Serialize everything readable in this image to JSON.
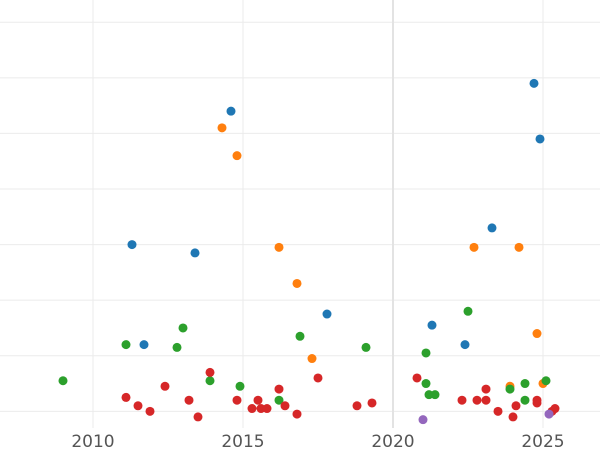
{
  "chart_data": {
    "type": "scatter",
    "title": "",
    "xlabel": "",
    "ylabel": "",
    "xlim": [
      2006.9,
      2026.9
    ],
    "ylim": [
      -0.3,
      7.4
    ],
    "grid": true,
    "legend": "none",
    "x_ticks": [
      2010,
      2015,
      2020,
      2025
    ],
    "x_tick_labels": [
      "2010",
      "2015",
      "2020",
      "2025"
    ],
    "y_gridlines": [
      0,
      1,
      2,
      3,
      4,
      5,
      6,
      7
    ],
    "series": [
      {
        "color": "#1f77b4",
        "points": [
          {
            "x": 2011.3,
            "y": 3.0
          },
          {
            "x": 2011.7,
            "y": 1.2
          },
          {
            "x": 2013.4,
            "y": 2.85
          },
          {
            "x": 2014.6,
            "y": 5.4
          },
          {
            "x": 2017.8,
            "y": 1.75
          },
          {
            "x": 2021.3,
            "y": 1.55
          },
          {
            "x": 2022.4,
            "y": 1.2
          },
          {
            "x": 2023.3,
            "y": 3.3
          },
          {
            "x": 2024.7,
            "y": 5.9
          },
          {
            "x": 2024.9,
            "y": 4.9
          }
        ]
      },
      {
        "color": "#ff7f0e",
        "points": [
          {
            "x": 2014.3,
            "y": 5.1
          },
          {
            "x": 2014.8,
            "y": 4.6
          },
          {
            "x": 2016.2,
            "y": 2.95
          },
          {
            "x": 2016.8,
            "y": 2.3
          },
          {
            "x": 2017.3,
            "y": 0.95
          },
          {
            "x": 2022.7,
            "y": 2.95
          },
          {
            "x": 2023.9,
            "y": 0.45
          },
          {
            "x": 2024.2,
            "y": 2.95
          },
          {
            "x": 2024.8,
            "y": 1.4
          },
          {
            "x": 2025.0,
            "y": 0.5
          }
        ]
      },
      {
        "color": "#2ca02c",
        "points": [
          {
            "x": 2009.0,
            "y": 0.55
          },
          {
            "x": 2011.1,
            "y": 1.2
          },
          {
            "x": 2012.8,
            "y": 1.15
          },
          {
            "x": 2013.0,
            "y": 1.5
          },
          {
            "x": 2013.9,
            "y": 0.55
          },
          {
            "x": 2014.9,
            "y": 0.45
          },
          {
            "x": 2016.2,
            "y": 0.2
          },
          {
            "x": 2016.9,
            "y": 1.35
          },
          {
            "x": 2019.1,
            "y": 1.15
          },
          {
            "x": 2021.1,
            "y": 1.05
          },
          {
            "x": 2021.1,
            "y": 0.5
          },
          {
            "x": 2021.2,
            "y": 0.3
          },
          {
            "x": 2021.4,
            "y": 0.3
          },
          {
            "x": 2022.5,
            "y": 1.8
          },
          {
            "x": 2023.9,
            "y": 0.4
          },
          {
            "x": 2024.4,
            "y": 0.5
          },
          {
            "x": 2024.4,
            "y": 0.2
          },
          {
            "x": 2025.1,
            "y": 0.55
          }
        ]
      },
      {
        "color": "#d62728",
        "points": [
          {
            "x": 2011.1,
            "y": 0.25
          },
          {
            "x": 2011.5,
            "y": 0.1
          },
          {
            "x": 2011.9,
            "y": 0.0
          },
          {
            "x": 2012.4,
            "y": 0.45
          },
          {
            "x": 2013.2,
            "y": 0.2
          },
          {
            "x": 2013.5,
            "y": -0.1
          },
          {
            "x": 2013.9,
            "y": 0.7
          },
          {
            "x": 2014.8,
            "y": 0.2
          },
          {
            "x": 2015.3,
            "y": 0.05
          },
          {
            "x": 2015.5,
            "y": 0.2
          },
          {
            "x": 2015.6,
            "y": 0.05
          },
          {
            "x": 2015.8,
            "y": 0.05
          },
          {
            "x": 2016.2,
            "y": 0.4
          },
          {
            "x": 2016.4,
            "y": 0.1
          },
          {
            "x": 2016.8,
            "y": -0.05
          },
          {
            "x": 2017.5,
            "y": 0.6
          },
          {
            "x": 2018.8,
            "y": 0.1
          },
          {
            "x": 2019.3,
            "y": 0.15
          },
          {
            "x": 2020.8,
            "y": 0.6
          },
          {
            "x": 2022.3,
            "y": 0.2
          },
          {
            "x": 2022.8,
            "y": 0.2
          },
          {
            "x": 2023.1,
            "y": 0.2
          },
          {
            "x": 2023.1,
            "y": 0.4
          },
          {
            "x": 2023.5,
            "y": 0.0
          },
          {
            "x": 2024.0,
            "y": -0.1
          },
          {
            "x": 2024.1,
            "y": 0.1
          },
          {
            "x": 2024.8,
            "y": 0.15
          },
          {
            "x": 2024.8,
            "y": 0.2
          },
          {
            "x": 2025.3,
            "y": 0.0
          },
          {
            "x": 2025.4,
            "y": 0.05
          }
        ]
      },
      {
        "color": "#9467bd",
        "points": [
          {
            "x": 2021.0,
            "y": -0.15
          },
          {
            "x": 2025.2,
            "y": -0.05
          }
        ]
      }
    ]
  }
}
